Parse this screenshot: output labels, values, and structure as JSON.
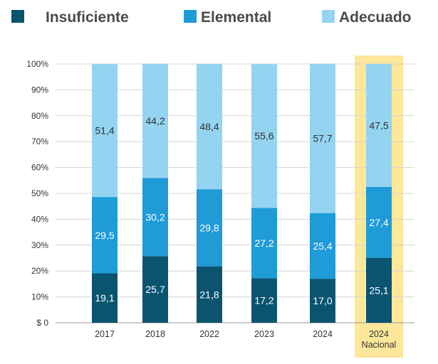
{
  "chart_data": {
    "type": "bar",
    "stacked": true,
    "categories": [
      "2017",
      "2018",
      "2022",
      "2023",
      "2024",
      "2024 Nacional"
    ],
    "series": [
      {
        "name": "Insuficiente",
        "color": "#0a5470",
        "values": [
          19.1,
          25.7,
          21.8,
          17.2,
          17.0,
          25.1
        ],
        "labels": [
          "19,1",
          "25,7",
          "21,8",
          "17,2",
          "17,0",
          "25,1"
        ],
        "label_color": "#ffffff"
      },
      {
        "name": "Elemental",
        "color": "#1f9bd8",
        "values": [
          29.5,
          30.2,
          29.8,
          27.2,
          25.4,
          27.4
        ],
        "labels": [
          "29,5",
          "30,2",
          "29,8",
          "27,2",
          "25,4",
          "27,4"
        ],
        "label_color": "#ffffff"
      },
      {
        "name": "Adecuado",
        "color": "#94d4f1",
        "values": [
          51.4,
          44.2,
          48.4,
          55.6,
          57.7,
          47.5
        ],
        "labels": [
          "51,4",
          "44,2",
          "48,4",
          "55,6",
          "57,7",
          "47,5"
        ],
        "label_color": "#333333"
      }
    ],
    "y_ticks": [
      "$ 0",
      "10%",
      "20%",
      "30%",
      "40%",
      "50%",
      "60%",
      "70%",
      "80%",
      "90%",
      "100%"
    ],
    "ylim": [
      0,
      100
    ],
    "grid": true,
    "legend_position": "top",
    "highlight": {
      "category_index": 5,
      "color": "#fce79a"
    }
  }
}
